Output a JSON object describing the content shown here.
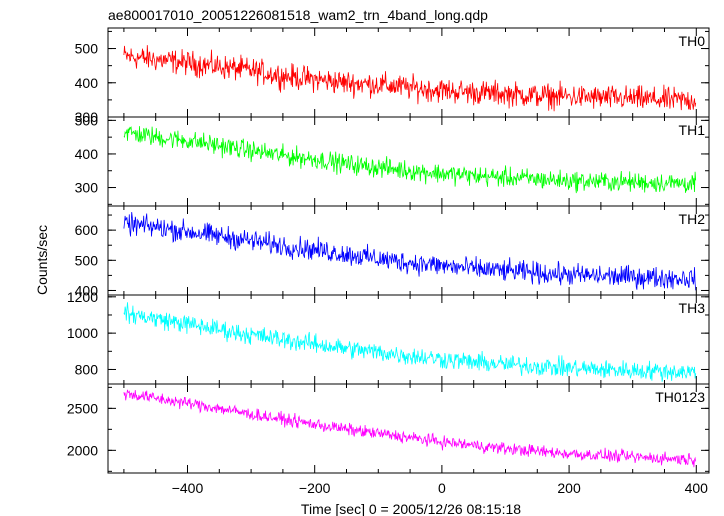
{
  "chart_data": {
    "type": "line",
    "title": "ae800017010_20051226081518_wam2_trn_4band_long.qdp",
    "xlabel": "Time [sec] 0 = 2005/12/26 08:15:18",
    "ylabel": "Counts/sec",
    "xlim": [
      -525,
      420
    ],
    "x_ticks": [
      -400,
      -200,
      0,
      200,
      400
    ],
    "grid": false,
    "legend": "none",
    "panels": [
      {
        "name": "TH0",
        "color": "#ff0000",
        "ylim": [
          300,
          560
        ],
        "y_ticks": [
          300,
          400,
          500
        ],
        "x": [
          -500,
          -450,
          -400,
          -350,
          -300,
          -250,
          -200,
          -150,
          -100,
          -50,
          0,
          50,
          100,
          150,
          200,
          250,
          300,
          350,
          400
        ],
        "y": [
          478,
          468,
          458,
          447,
          436,
          420,
          410,
          400,
          395,
          385,
          378,
          372,
          368,
          362,
          360,
          356,
          354,
          350,
          348
        ],
        "noise": 22
      },
      {
        "name": "TH1",
        "color": "#00ff00",
        "ylim": [
          245,
          510
        ],
        "y_ticks": [
          300,
          400,
          500
        ],
        "x": [
          -500,
          -450,
          -400,
          -350,
          -300,
          -250,
          -200,
          -150,
          -100,
          -50,
          0,
          50,
          100,
          150,
          200,
          250,
          300,
          350,
          400
        ],
        "y": [
          465,
          450,
          440,
          425,
          410,
          395,
          385,
          370,
          360,
          350,
          342,
          335,
          330,
          325,
          320,
          318,
          316,
          314,
          312
        ],
        "noise": 18
      },
      {
        "name": "TH2",
        "color": "#0000ff",
        "ylim": [
          385,
          680
        ],
        "y_ticks": [
          400,
          500,
          600
        ],
        "x": [
          -500,
          -450,
          -400,
          -350,
          -300,
          -250,
          -200,
          -150,
          -100,
          -50,
          0,
          50,
          100,
          150,
          200,
          250,
          300,
          350,
          400
        ],
        "y": [
          620,
          610,
          595,
          580,
          565,
          548,
          535,
          520,
          505,
          492,
          482,
          472,
          465,
          458,
          452,
          448,
          445,
          442,
          440
        ],
        "noise": 22
      },
      {
        "name": "TH3",
        "color": "#00ffff",
        "ylim": [
          720,
          1210
        ],
        "y_ticks": [
          800,
          1000,
          1200
        ],
        "x": [
          -500,
          -450,
          -400,
          -350,
          -300,
          -250,
          -200,
          -150,
          -100,
          -50,
          0,
          50,
          100,
          150,
          200,
          250,
          300,
          350,
          400
        ],
        "y": [
          1110,
          1080,
          1050,
          1020,
          990,
          965,
          940,
          915,
          895,
          875,
          858,
          840,
          828,
          818,
          808,
          800,
          795,
          790,
          785
        ],
        "noise": 32
      },
      {
        "name": "TH0123",
        "color": "#ff00ff",
        "ylim": [
          1730,
          2790
        ],
        "y_ticks": [
          2000,
          2500
        ],
        "x": [
          -500,
          -450,
          -400,
          -350,
          -300,
          -250,
          -200,
          -150,
          -100,
          -50,
          0,
          50,
          100,
          150,
          200,
          250,
          300,
          350,
          400
        ],
        "y": [
          2680,
          2620,
          2560,
          2500,
          2430,
          2370,
          2310,
          2250,
          2200,
          2150,
          2100,
          2060,
          2020,
          1990,
          1960,
          1940,
          1920,
          1905,
          1890
        ],
        "noise": 45
      }
    ]
  }
}
